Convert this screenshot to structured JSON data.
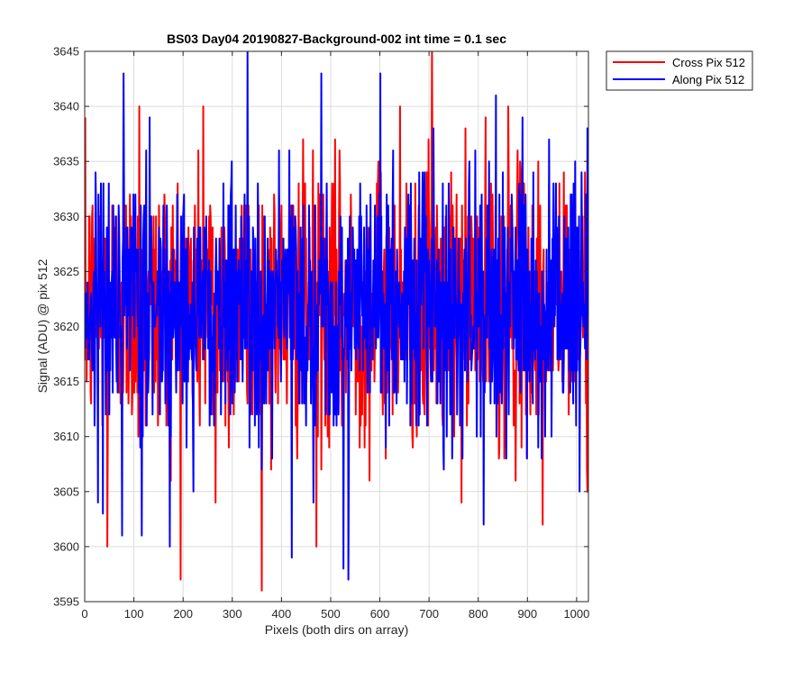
{
  "chart_data": {
    "type": "line",
    "title": "BS03 Day04 20190827-Background-002 int time = 0.1 sec",
    "xlabel": "Pixels (both dirs on array)",
    "ylabel": "Signal (ADU) @ pix 512",
    "xlim": [
      0,
      1024
    ],
    "ylim": [
      3595,
      3645
    ],
    "xticks": [
      0,
      100,
      200,
      300,
      400,
      500,
      600,
      700,
      800,
      900,
      1000
    ],
    "yticks": [
      3595,
      3600,
      3605,
      3610,
      3615,
      3620,
      3625,
      3630,
      3635,
      3640,
      3645
    ],
    "grid": true,
    "legend_position": "outside-top-right",
    "sample_count": 1024,
    "series": [
      {
        "name": "Cross Pix 512",
        "color": "#ff0000",
        "mean": 3622,
        "std": 6.2,
        "extremes": [
          {
            "x": 45,
            "y": 3600
          },
          {
            "x": 110,
            "y": 3640
          },
          {
            "x": 240,
            "y": 3640
          },
          {
            "x": 265,
            "y": 3604
          },
          {
            "x": 470,
            "y": 3600
          },
          {
            "x": 640,
            "y": 3640
          },
          {
            "x": 705,
            "y": 3645
          },
          {
            "x": 860,
            "y": 3640
          },
          {
            "x": 930,
            "y": 3602
          },
          {
            "x": 1020,
            "y": 3607
          }
        ]
      },
      {
        "name": "Along Pix 512",
        "color": "#0000ff",
        "mean": 3622,
        "std": 6.0,
        "extremes": [
          {
            "x": 75,
            "y": 3601
          },
          {
            "x": 115,
            "y": 3601
          },
          {
            "x": 330,
            "y": 3645
          },
          {
            "x": 420,
            "y": 3599
          },
          {
            "x": 480,
            "y": 3643
          },
          {
            "x": 525,
            "y": 3598
          },
          {
            "x": 535,
            "y": 3597
          },
          {
            "x": 600,
            "y": 3643
          },
          {
            "x": 810,
            "y": 3602
          },
          {
            "x": 835,
            "y": 3641
          },
          {
            "x": 1005,
            "y": 3605
          }
        ]
      }
    ]
  }
}
